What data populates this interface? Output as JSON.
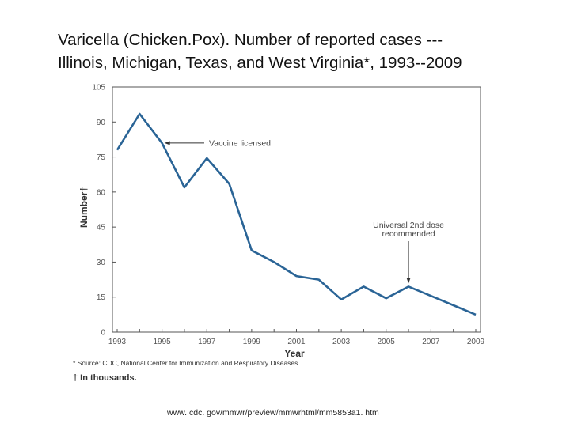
{
  "slide": {
    "title_line1": "Varicella (Chicken.Pox). Number of reported cases ---",
    "title_line2": "Illinois, Michigan, Texas, and West Virginia*, 1993--2009",
    "source_url": "www. cdc. gov/mmwr/preview/mmwrhtml/mm5853a1. htm"
  },
  "chart_data": {
    "type": "line",
    "title": "",
    "xlabel": "Year",
    "ylabel": "Number†",
    "xlim": [
      1993,
      2009
    ],
    "ylim": [
      0,
      105
    ],
    "yticks": [
      0,
      15,
      30,
      45,
      60,
      75,
      90,
      105
    ],
    "xtick_labels": [
      "1993",
      "1995",
      "1997",
      "1999",
      "2001",
      "2003",
      "2005",
      "2007",
      "2009"
    ],
    "grid": false,
    "line_color": "#2a6496",
    "series": [
      {
        "x": [
          1993,
          1994,
          1995,
          1996,
          1997,
          1998,
          1999,
          2000,
          2001,
          2002,
          2003,
          2004,
          2005,
          2006,
          2007,
          2008,
          2009
        ],
        "values": [
          78,
          93.5,
          81,
          62,
          74.5,
          63.5,
          35,
          30,
          24,
          22.5,
          14,
          19.5,
          14.5,
          19.5,
          15.5,
          11.5,
          7.5
        ]
      }
    ],
    "annotations": [
      {
        "text": "Vaccine licensed",
        "x": 1995,
        "y": 81
      },
      {
        "text_lines": [
          "Universal 2nd dose",
          "recommended"
        ],
        "x": 2006,
        "y": 19.5
      }
    ],
    "footnotes": [
      "* Source: CDC, National Center for Immunization and Respiratory Diseases.",
      "† In thousands."
    ]
  }
}
